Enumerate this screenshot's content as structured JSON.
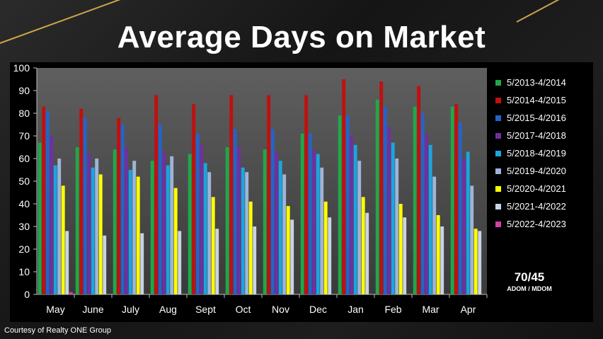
{
  "title": "Average Days on Market",
  "credit": "Courtesy of Realty ONE Group",
  "annotation": {
    "value": "70/45",
    "label": "ADOM / MDOM"
  },
  "chart_data": {
    "type": "bar",
    "title": "Average Days on Market",
    "xlabel": "",
    "ylabel": "",
    "ylim": [
      0,
      100
    ],
    "yticks": [
      0,
      10,
      20,
      30,
      40,
      50,
      60,
      70,
      80,
      90,
      100
    ],
    "grid": false,
    "legend_position": "right",
    "categories": [
      "May",
      "June",
      "July",
      "Aug",
      "Sept",
      "Oct",
      "Nov",
      "Dec",
      "Jan",
      "Feb",
      "Mar",
      "Apr"
    ],
    "series": [
      {
        "name": "5/2013-4/2014",
        "color": "#1fa84a",
        "values": [
          67,
          65,
          64,
          59,
          62,
          65,
          64,
          71,
          79,
          86,
          83,
          83
        ]
      },
      {
        "name": "5/2014-4/2015",
        "color": "#c0100f",
        "values": [
          83,
          82,
          78,
          88,
          84,
          88,
          88,
          88,
          95,
          94,
          92,
          84
        ]
      },
      {
        "name": "5/2015-4/2016",
        "color": "#2563c9",
        "values": [
          81,
          78,
          75,
          75,
          71,
          73,
          73,
          71,
          79,
          83,
          80,
          76
        ]
      },
      {
        "name": "5/2017-4/2018",
        "color": "#7030a0",
        "values": [
          70,
          62,
          65,
          63,
          66,
          65,
          63,
          64,
          70,
          74,
          71,
          60
        ]
      },
      {
        "name": "5/2018-4/2019",
        "color": "#1aa6e0",
        "values": [
          57,
          56,
          55,
          57,
          58,
          56,
          59,
          62,
          66,
          67,
          66,
          63
        ]
      },
      {
        "name": "5/2019-4/2020",
        "color": "#9fb4d8",
        "values": [
          60,
          60,
          59,
          61,
          54,
          54,
          53,
          56,
          59,
          60,
          52,
          48
        ]
      },
      {
        "name": "5/2020-4/2021",
        "color": "#ffff00",
        "values": [
          48,
          53,
          52,
          47,
          43,
          41,
          39,
          41,
          43,
          40,
          35,
          29
        ]
      },
      {
        "name": "5/2021-4/2022",
        "color": "#c9d3e6",
        "values": [
          28,
          26,
          27,
          28,
          29,
          30,
          33,
          34,
          36,
          34,
          30,
          28
        ]
      },
      {
        "name": "5/2022-4/2023",
        "color": "#d63fa6",
        "values": [
          1,
          null,
          null,
          null,
          null,
          null,
          null,
          null,
          null,
          null,
          null,
          null
        ]
      }
    ]
  }
}
